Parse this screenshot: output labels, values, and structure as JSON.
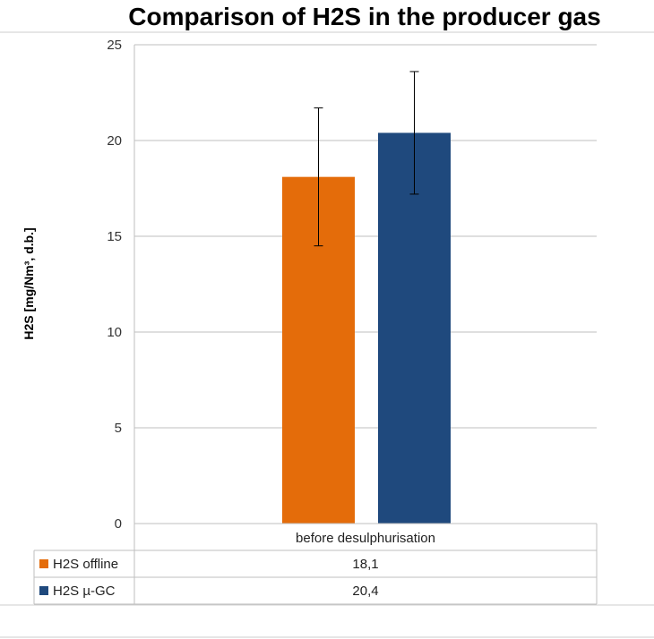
{
  "title": "Comparison of H2S in the producer gas",
  "chart_data": {
    "type": "bar",
    "title": "Comparison of H2S in the producer gas",
    "ylabel": "H2S [mg/Nm³, d.b.]",
    "xlabel": "",
    "ylim": [
      0,
      25
    ],
    "yticks": [
      0,
      5,
      10,
      15,
      20,
      25
    ],
    "grid": true,
    "categories": [
      "before desulphurisation"
    ],
    "series": [
      {
        "name": "H2S offline",
        "color": "#E46C0A",
        "values": [
          18.1
        ],
        "labels": [
          "18,1"
        ],
        "error": [
          [
            14.5,
            21.7
          ]
        ]
      },
      {
        "name": "H2S µ-GC",
        "color": "#1F497D",
        "values": [
          20.4
        ],
        "labels": [
          "20,4"
        ],
        "error": [
          [
            17.2,
            23.6
          ]
        ]
      }
    ]
  }
}
